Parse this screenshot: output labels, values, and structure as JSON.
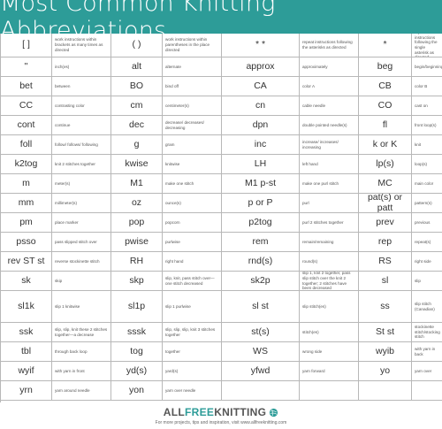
{
  "header": {
    "title": "Most Common Knitting Abbreviations"
  },
  "table": {
    "row_heights": [
      27,
      22,
      22,
      22,
      22,
      22,
      22,
      22,
      22,
      22,
      22,
      22,
      22,
      36,
      22,
      22,
      22,
      22,
      22,
      22
    ],
    "rows": [
      [
        [
          "[ ]",
          "work instructions within brackets as many times as directed"
        ],
        [
          "( )",
          "work instructions within parentheses in the place directed"
        ],
        [
          "* *",
          "repeat instructions following the asterisks as directed"
        ],
        [
          "*",
          "repeat instructions following the single asterisk as directed"
        ]
      ],
      [
        [
          "\"",
          "inch(es)"
        ],
        [
          "alt",
          "alternate"
        ],
        [
          "approx",
          "approximately"
        ],
        [
          "beg",
          "begin/beginning"
        ]
      ],
      [
        [
          "bet",
          "between"
        ],
        [
          "BO",
          "bind off"
        ],
        [
          "CA",
          "color A"
        ],
        [
          "CB",
          "color B"
        ]
      ],
      [
        [
          "CC",
          "contrasting color"
        ],
        [
          "cm",
          "centimeter(s)"
        ],
        [
          "cn",
          "cable needle"
        ],
        [
          "CO",
          "cast on"
        ]
      ],
      [
        [
          "cont",
          "continue"
        ],
        [
          "dec",
          "decrease/ decreases/ decreasing"
        ],
        [
          "dpn",
          "double pointed needle(s)"
        ],
        [
          "fl",
          "front loop(s)"
        ]
      ],
      [
        [
          "foll",
          "follow/ follows/ following"
        ],
        [
          "g",
          "gram"
        ],
        [
          "inc",
          "increase/ increases/ increasing"
        ],
        [
          "k or K",
          "knit"
        ]
      ],
      [
        [
          "k2tog",
          "knit 2 stitches together"
        ],
        [
          "kwise",
          "knitwise"
        ],
        [
          "LH",
          "left hand"
        ],
        [
          "lp(s)",
          "loop(s)"
        ]
      ],
      [
        [
          "m",
          "meter(s)"
        ],
        [
          "M1",
          "make one stitch"
        ],
        [
          "M1 p-st",
          "make one purl stitch"
        ],
        [
          "MC",
          "main color"
        ]
      ],
      [
        [
          "mm",
          "millimeter(s)"
        ],
        [
          "oz",
          "ounce(s)"
        ],
        [
          "p or P",
          "purl"
        ],
        [
          "pat(s) or patt",
          "pattern(s)"
        ]
      ],
      [
        [
          "pm",
          "place marker"
        ],
        [
          "pop",
          "popcorn"
        ],
        [
          "p2tog",
          "purl 2 stitches together"
        ],
        [
          "prev",
          "previous"
        ]
      ],
      [
        [
          "psso",
          "pass slipped stitch over"
        ],
        [
          "pwise",
          "purlwise"
        ],
        [
          "rem",
          "remain/remaining"
        ],
        [
          "rep",
          "repeat(s)"
        ]
      ],
      [
        [
          "rev ST st",
          "reverse stockinette stitch"
        ],
        [
          "RH",
          "right hand"
        ],
        [
          "rnd(s)",
          "round(s)"
        ],
        [
          "RS",
          "right side"
        ]
      ],
      [
        [
          "sk",
          "skip"
        ],
        [
          "skp",
          "slip, knit, pass stitch over—one stitch decreased"
        ],
        [
          "sk2p",
          "slip 1, knit 2 together, pass slip stitch over the knit 2 together; 2 stitches have been decreased"
        ],
        [
          "sl",
          "slip"
        ]
      ],
      [
        [
          "sl1k",
          "slip 1 knitwise"
        ],
        [
          "sl1p",
          "slip 1 purlwise"
        ],
        [
          "sl st",
          "slip stitch(es)"
        ],
        [
          "ss",
          "slip stitch (Canadian)"
        ]
      ],
      [
        [
          "ssk",
          "slip, slip, knit these 2 stitches together—a decrease"
        ],
        [
          "sssk",
          "slip, slip, slip, knit 3 stitches together"
        ],
        [
          "st(s)",
          "stitch(es)"
        ],
        [
          "St st",
          "stockinette stitch/stocking stitch"
        ]
      ],
      [
        [
          "tbl",
          "through back loop"
        ],
        [
          "tog",
          "together"
        ],
        [
          "WS",
          "wrong side"
        ],
        [
          "wyib",
          "with yarn in back"
        ]
      ],
      [
        [
          "wyif",
          "with yarn in front"
        ],
        [
          "yd(s)",
          "yard(s)"
        ],
        [
          "yfwd",
          "yarn forward"
        ],
        [
          "yo",
          "yarn over"
        ]
      ],
      [
        [
          "yrn",
          "yarn around needle"
        ],
        [
          "yon",
          "yarn over needle"
        ],
        [
          "",
          ""
        ],
        [
          "",
          ""
        ]
      ]
    ]
  },
  "footer": {
    "logo_all": "ALL",
    "logo_free": "FREE",
    "logo_knitting": "KNITTING",
    "logo_icon": "yarn-ball-icon",
    "tagline": "For more projects, tips and inspiration, visit www.allfreeknitting.com",
    "brand_color": "#2d9c98"
  }
}
